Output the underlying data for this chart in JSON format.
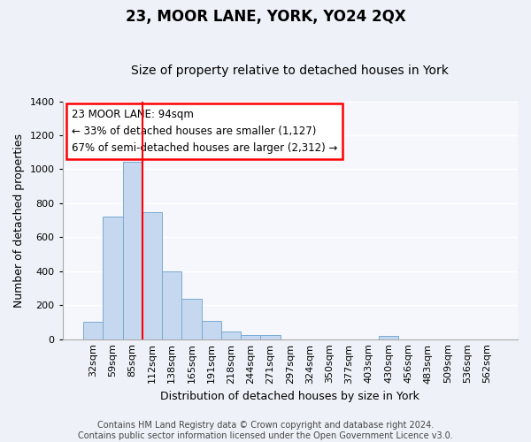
{
  "title": "23, MOOR LANE, YORK, YO24 2QX",
  "subtitle": "Size of property relative to detached houses in York",
  "xlabel": "Distribution of detached houses by size in York",
  "ylabel": "Number of detached properties",
  "categories": [
    "32sqm",
    "59sqm",
    "85sqm",
    "112sqm",
    "138sqm",
    "165sqm",
    "191sqm",
    "218sqm",
    "244sqm",
    "271sqm",
    "297sqm",
    "324sqm",
    "350sqm",
    "377sqm",
    "403sqm",
    "430sqm",
    "456sqm",
    "483sqm",
    "509sqm",
    "536sqm",
    "562sqm"
  ],
  "values": [
    100,
    720,
    1045,
    750,
    400,
    240,
    110,
    45,
    25,
    25,
    0,
    0,
    0,
    0,
    0,
    20,
    0,
    0,
    0,
    0,
    0
  ],
  "bar_color": "#c5d8f0",
  "bar_edge_color": "#7aaad0",
  "redline_x": 2.5,
  "annotation_text": "23 MOOR LANE: 94sqm\n← 33% of detached houses are smaller (1,127)\n67% of semi-detached houses are larger (2,312) →",
  "annotation_box_color": "white",
  "annotation_box_edge": "red",
  "ylim": [
    0,
    1400
  ],
  "yticks": [
    0,
    200,
    400,
    600,
    800,
    1000,
    1200,
    1400
  ],
  "footer": "Contains HM Land Registry data © Crown copyright and database right 2024.\nContains public sector information licensed under the Open Government Licence v3.0.",
  "bg_color": "#eef2f8",
  "plot_bg_color": "#f5f7fd",
  "grid_color": "white",
  "title_fontsize": 12,
  "subtitle_fontsize": 10,
  "label_fontsize": 9,
  "tick_fontsize": 8,
  "footer_fontsize": 7
}
